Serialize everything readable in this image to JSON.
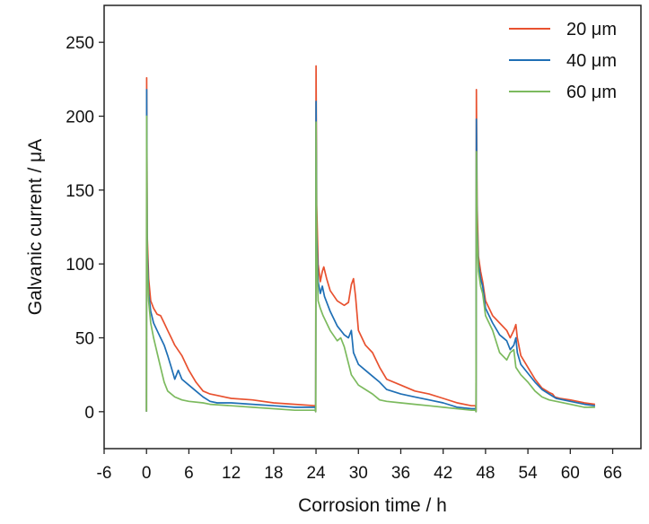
{
  "chart_data": {
    "type": "line",
    "xlabel": "Corrosion time / h",
    "ylabel": "Galvanic current / μA",
    "xlim": [
      -6,
      70
    ],
    "ylim": [
      -25,
      275
    ],
    "xticks": [
      -6,
      0,
      6,
      12,
      18,
      24,
      30,
      36,
      42,
      48,
      54,
      60,
      66
    ],
    "yticks": [
      0,
      50,
      100,
      150,
      200,
      250
    ],
    "grid": false,
    "legend_position": "top-right",
    "series": [
      {
        "name": "20 μm",
        "color": "#e8512f",
        "points": [
          [
            0,
            0
          ],
          [
            0.02,
            226
          ],
          [
            0.1,
            120
          ],
          [
            0.3,
            90
          ],
          [
            0.6,
            75
          ],
          [
            1,
            70
          ],
          [
            1.5,
            66
          ],
          [
            2,
            65
          ],
          [
            2.5,
            60
          ],
          [
            3,
            55
          ],
          [
            3.5,
            50
          ],
          [
            4,
            45
          ],
          [
            5,
            38
          ],
          [
            6,
            28
          ],
          [
            7,
            20
          ],
          [
            8,
            14
          ],
          [
            9,
            12
          ],
          [
            10,
            11
          ],
          [
            12,
            9
          ],
          [
            15,
            8
          ],
          [
            18,
            6
          ],
          [
            21,
            5
          ],
          [
            23.9,
            4
          ],
          [
            23.95,
            0
          ],
          [
            24.0,
            234
          ],
          [
            24.1,
            140
          ],
          [
            24.3,
            100
          ],
          [
            24.6,
            88
          ],
          [
            24.9,
            95
          ],
          [
            25.1,
            98
          ],
          [
            25.5,
            90
          ],
          [
            26,
            82
          ],
          [
            27,
            75
          ],
          [
            28,
            72
          ],
          [
            28.6,
            74
          ],
          [
            29,
            86
          ],
          [
            29.3,
            90
          ],
          [
            29.6,
            78
          ],
          [
            30,
            55
          ],
          [
            31,
            45
          ],
          [
            32,
            40
          ],
          [
            33,
            30
          ],
          [
            34,
            22
          ],
          [
            36,
            18
          ],
          [
            38,
            14
          ],
          [
            40,
            12
          ],
          [
            42,
            9
          ],
          [
            44,
            6
          ],
          [
            46,
            4
          ],
          [
            46.6,
            4
          ],
          [
            46.65,
            0
          ],
          [
            46.7,
            218
          ],
          [
            46.8,
            140
          ],
          [
            47,
            105
          ],
          [
            47.3,
            95
          ],
          [
            47.6,
            88
          ],
          [
            48,
            75
          ],
          [
            49,
            65
          ],
          [
            50,
            60
          ],
          [
            51,
            55
          ],
          [
            51.5,
            50
          ],
          [
            52,
            55
          ],
          [
            52.3,
            59
          ],
          [
            52.5,
            50
          ],
          [
            53,
            38
          ],
          [
            54,
            30
          ],
          [
            55,
            22
          ],
          [
            56,
            16
          ],
          [
            57,
            13
          ],
          [
            57.5,
            12
          ],
          [
            57.8,
            10
          ],
          [
            58.5,
            9
          ],
          [
            60,
            8
          ],
          [
            62,
            6
          ],
          [
            63.5,
            5
          ]
        ]
      },
      {
        "name": "40 μm",
        "color": "#1f6fb5",
        "points": [
          [
            0,
            0
          ],
          [
            0.02,
            218
          ],
          [
            0.1,
            110
          ],
          [
            0.3,
            80
          ],
          [
            0.6,
            68
          ],
          [
            1,
            60
          ],
          [
            1.5,
            55
          ],
          [
            2,
            50
          ],
          [
            2.5,
            45
          ],
          [
            3,
            38
          ],
          [
            3.5,
            30
          ],
          [
            4,
            22
          ],
          [
            4.5,
            28
          ],
          [
            5,
            22
          ],
          [
            6,
            18
          ],
          [
            7,
            14
          ],
          [
            8,
            10
          ],
          [
            9,
            7
          ],
          [
            10,
            6
          ],
          [
            12,
            6
          ],
          [
            15,
            5
          ],
          [
            18,
            4
          ],
          [
            21,
            3
          ],
          [
            23.9,
            3
          ],
          [
            23.95,
            0
          ],
          [
            24.0,
            210
          ],
          [
            24.1,
            120
          ],
          [
            24.3,
            88
          ],
          [
            24.6,
            80
          ],
          [
            24.9,
            85
          ],
          [
            25.2,
            78
          ],
          [
            26,
            68
          ],
          [
            27,
            58
          ],
          [
            28,
            52
          ],
          [
            28.6,
            50
          ],
          [
            29,
            55
          ],
          [
            29.3,
            40
          ],
          [
            30,
            32
          ],
          [
            31,
            28
          ],
          [
            32,
            24
          ],
          [
            33,
            20
          ],
          [
            34,
            15
          ],
          [
            36,
            12
          ],
          [
            38,
            10
          ],
          [
            40,
            8
          ],
          [
            42,
            6
          ],
          [
            44,
            3
          ],
          [
            46,
            2
          ],
          [
            46.6,
            2
          ],
          [
            46.65,
            0
          ],
          [
            46.7,
            198
          ],
          [
            46.8,
            125
          ],
          [
            47,
            100
          ],
          [
            47.3,
            90
          ],
          [
            47.6,
            85
          ],
          [
            48,
            70
          ],
          [
            49,
            60
          ],
          [
            50,
            52
          ],
          [
            51,
            48
          ],
          [
            51.5,
            42
          ],
          [
            52,
            45
          ],
          [
            52.3,
            50
          ],
          [
            52.5,
            40
          ],
          [
            53,
            32
          ],
          [
            54,
            26
          ],
          [
            55,
            20
          ],
          [
            56,
            15
          ],
          [
            57,
            12
          ],
          [
            58,
            9
          ],
          [
            60,
            7
          ],
          [
            62,
            5
          ],
          [
            63.5,
            4
          ]
        ]
      },
      {
        "name": "60 μm",
        "color": "#7cba5e",
        "points": [
          [
            0,
            0
          ],
          [
            0.02,
            200
          ],
          [
            0.1,
            100
          ],
          [
            0.3,
            75
          ],
          [
            0.6,
            60
          ],
          [
            1,
            50
          ],
          [
            1.5,
            40
          ],
          [
            2,
            30
          ],
          [
            2.5,
            20
          ],
          [
            3,
            14
          ],
          [
            4,
            10
          ],
          [
            5,
            8
          ],
          [
            6,
            7
          ],
          [
            8,
            6
          ],
          [
            9,
            5
          ],
          [
            12,
            4
          ],
          [
            15,
            3
          ],
          [
            18,
            2
          ],
          [
            21,
            1
          ],
          [
            23.9,
            1
          ],
          [
            23.95,
            0
          ],
          [
            24.0,
            196
          ],
          [
            24.1,
            110
          ],
          [
            24.3,
            75
          ],
          [
            24.6,
            70
          ],
          [
            25,
            65
          ],
          [
            26,
            55
          ],
          [
            27,
            48
          ],
          [
            27.5,
            50
          ],
          [
            28,
            44
          ],
          [
            29,
            25
          ],
          [
            30,
            18
          ],
          [
            31,
            15
          ],
          [
            32,
            12
          ],
          [
            33,
            8
          ],
          [
            34,
            7
          ],
          [
            36,
            6
          ],
          [
            38,
            5
          ],
          [
            40,
            4
          ],
          [
            42,
            3
          ],
          [
            44,
            2
          ],
          [
            46,
            1
          ],
          [
            46.6,
            1
          ],
          [
            46.65,
            0
          ],
          [
            46.7,
            176
          ],
          [
            46.8,
            120
          ],
          [
            47,
            95
          ],
          [
            47.3,
            85
          ],
          [
            47.6,
            80
          ],
          [
            48,
            65
          ],
          [
            49,
            55
          ],
          [
            50,
            40
          ],
          [
            51,
            35
          ],
          [
            51.5,
            40
          ],
          [
            52,
            42
          ],
          [
            52.3,
            30
          ],
          [
            53,
            25
          ],
          [
            54,
            20
          ],
          [
            55,
            14
          ],
          [
            56,
            10
          ],
          [
            57,
            8
          ],
          [
            58,
            7
          ],
          [
            60,
            5
          ],
          [
            62,
            3
          ],
          [
            63.5,
            3
          ]
        ]
      }
    ]
  }
}
